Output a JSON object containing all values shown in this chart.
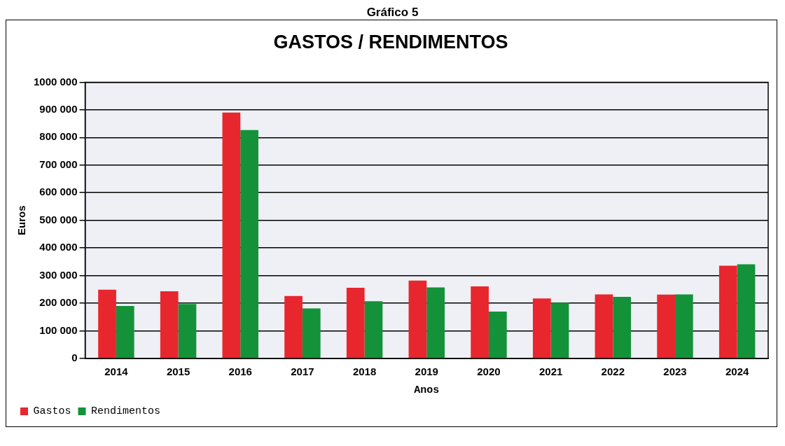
{
  "chart_data": {
    "type": "bar",
    "title": "GASTOS / RENDIMENTOS",
    "annotations": [
      "Gráfico 5"
    ],
    "xlabel": "Anos",
    "ylabel": "Euros",
    "categories": [
      "2014",
      "2015",
      "2016",
      "2017",
      "2018",
      "2019",
      "2020",
      "2021",
      "2022",
      "2023",
      "2024"
    ],
    "series": [
      {
        "name": "Gastos",
        "color": "#e8262e",
        "values": [
          249000,
          243000,
          890000,
          226000,
          256000,
          282000,
          261000,
          217000,
          232000,
          231000,
          336000
        ]
      },
      {
        "name": "Rendimentos",
        "color": "#13923a",
        "values": [
          190000,
          197000,
          827000,
          181000,
          207000,
          257000,
          170000,
          202000,
          223000,
          232000,
          341000
        ]
      }
    ],
    "ylim": [
      0,
      1000000
    ],
    "yticks": [
      0,
      {
        "value": 100000,
        "label": "100 000"
      },
      {
        "value": 200000,
        "label": "200 000"
      },
      {
        "value": 300000,
        "label": "300 000"
      },
      {
        "value": 400000,
        "label": "400 000"
      },
      {
        "value": 500000,
        "label": "500 000"
      },
      {
        "value": 600000,
        "label": "600 000"
      },
      {
        "value": 700000,
        "label": "700 000"
      },
      {
        "value": 800000,
        "label": "800 000"
      },
      {
        "value": 900000,
        "label": "900 000"
      },
      {
        "value": 1000000,
        "label": "1000 000"
      }
    ],
    "grid": "y",
    "legend": "bottom left"
  }
}
